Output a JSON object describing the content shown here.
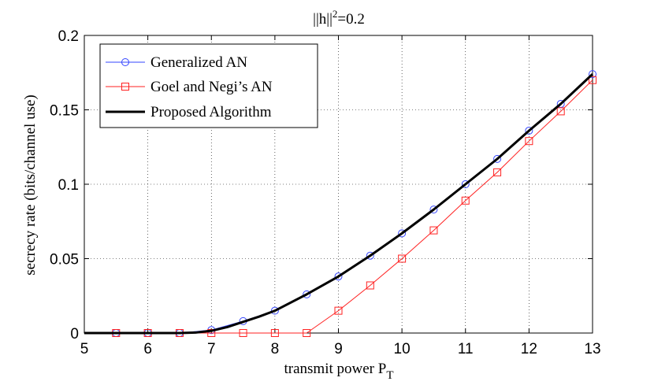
{
  "chart_data": {
    "type": "line",
    "title_base": "||h||",
    "title_exp": "2",
    "title_rest": "=0.2",
    "xlabel_base": "transmit power P",
    "xlabel_sub": "T",
    "ylabel": "secrecy rate (bits/channel use)",
    "xlim": [
      5,
      13
    ],
    "ylim": [
      0,
      0.2
    ],
    "xticks": [
      5,
      6,
      7,
      8,
      9,
      10,
      11,
      12,
      13
    ],
    "yticks": [
      0,
      0.05,
      0.1,
      0.15,
      0.2
    ],
    "xtick_labels": [
      "5",
      "6",
      "7",
      "8",
      "9",
      "10",
      "11",
      "12",
      "13"
    ],
    "ytick_labels": [
      "0",
      "0.05",
      "0.1",
      "0.15",
      "0.2"
    ],
    "grid": true,
    "legend_position": "top-left",
    "series": [
      {
        "name": "Generalized AN",
        "color": "#3344ff",
        "marker": "circle",
        "x": [
          5.5,
          6,
          6.5,
          7,
          7.5,
          8,
          8.5,
          9,
          9.5,
          10,
          10.5,
          11,
          11.5,
          12,
          12.5,
          13
        ],
        "y": [
          0,
          0,
          0,
          0.002,
          0.008,
          0.015,
          0.026,
          0.038,
          0.052,
          0.067,
          0.083,
          0.1,
          0.117,
          0.136,
          0.154,
          0.174
        ]
      },
      {
        "name": "Goel and Negi’s AN",
        "color": "#ff2222",
        "marker": "square",
        "x": [
          5.5,
          6,
          6.5,
          7,
          7.5,
          8,
          8.5,
          9,
          9.5,
          10,
          10.5,
          11,
          11.5,
          12,
          12.5,
          13
        ],
        "y": [
          0,
          0,
          0,
          0,
          0,
          0,
          0,
          0.015,
          0.032,
          0.05,
          0.069,
          0.089,
          0.108,
          0.129,
          0.149,
          0.17
        ]
      },
      {
        "name": "Proposed Algorithm",
        "color": "#000000",
        "marker": "none",
        "x": [
          5,
          5.5,
          6,
          6.5,
          6.75,
          7,
          7.25,
          7.5,
          7.75,
          8,
          8.5,
          9,
          9.5,
          10,
          10.5,
          11,
          11.5,
          12,
          12.5,
          13
        ],
        "y": [
          0,
          0,
          0,
          0,
          0.0003,
          0.0015,
          0.004,
          0.0075,
          0.011,
          0.015,
          0.026,
          0.038,
          0.052,
          0.067,
          0.083,
          0.1,
          0.117,
          0.136,
          0.154,
          0.174
        ]
      }
    ]
  }
}
